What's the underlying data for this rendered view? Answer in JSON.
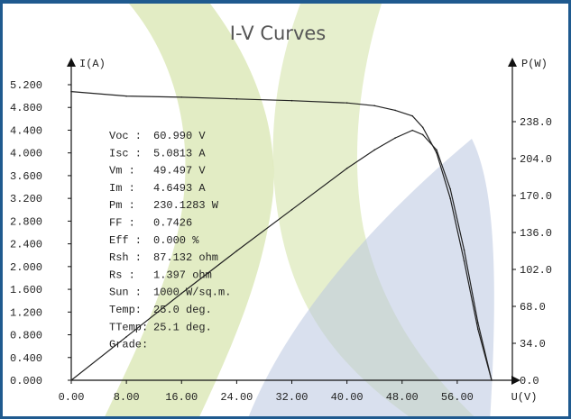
{
  "chart_data": {
    "type": "line",
    "title": "I-V Curves",
    "ylabel_left": "I(A)",
    "ylabel_right": "P(W)",
    "xlabel": "U(V)",
    "xlim": [
      0,
      64
    ],
    "ylim_left": [
      0,
      5.2
    ],
    "ylim_right": [
      0,
      272
    ],
    "x_ticks": [
      "0.00",
      "8.00",
      "16.00",
      "24.00",
      "32.00",
      "40.00",
      "48.00",
      "56.00"
    ],
    "y_ticks_left": [
      "0.000",
      "0.400",
      "0.800",
      "1.200",
      "1.600",
      "2.000",
      "2.400",
      "2.800",
      "3.200",
      "3.600",
      "4.000",
      "4.400",
      "4.800",
      "5.200"
    ],
    "y_ticks_right": [
      "0.0",
      "34.0",
      "68.0",
      "102.0",
      "136.0",
      "170.0",
      "204.0",
      "238.0"
    ],
    "series": [
      {
        "axis": "left",
        "x": [
          0,
          8,
          16,
          24,
          32,
          40,
          44,
          47,
          49.5,
          51,
          53,
          55,
          57,
          59,
          60.99
        ],
        "y": [
          5.08,
          5.0,
          4.98,
          4.95,
          4.92,
          4.88,
          4.83,
          4.75,
          4.65,
          4.45,
          4.0,
          3.2,
          2.1,
          0.9,
          0
        ]
      },
      {
        "axis": "right",
        "x": [
          0,
          8,
          16,
          24,
          32,
          40,
          44,
          47,
          49.5,
          51,
          53,
          55,
          57,
          59,
          60.99
        ],
        "y": [
          0,
          40,
          80,
          119,
          157,
          195,
          212,
          223,
          230,
          226,
          212,
          176,
          120,
          53,
          0
        ]
      }
    ],
    "info": [
      {
        "label": "Voc :",
        "value": "60.990 V"
      },
      {
        "label": "Isc :",
        "value": "5.0813 A"
      },
      {
        "label": "Vm  :",
        "value": "49.497 V"
      },
      {
        "label": "Im  :",
        "value": "4.6493 A"
      },
      {
        "label": "Pm  :",
        "value": "230.1283 W"
      },
      {
        "label": "FF  :",
        "value": "0.7426"
      },
      {
        "label": "Eff :",
        "value": "0.000 %"
      },
      {
        "label": "Rsh :",
        "value": "87.132 ohm"
      },
      {
        "label": "Rs  :",
        "value": "1.397 ohm"
      },
      {
        "label": "Sun :",
        "value": "1000 W/sq.m."
      },
      {
        "label": "Temp:",
        "value": "25.0 deg."
      },
      {
        "label": "TTemp:",
        "value": "25.1 deg."
      },
      {
        "label": "Grade:",
        "value": ""
      }
    ]
  }
}
